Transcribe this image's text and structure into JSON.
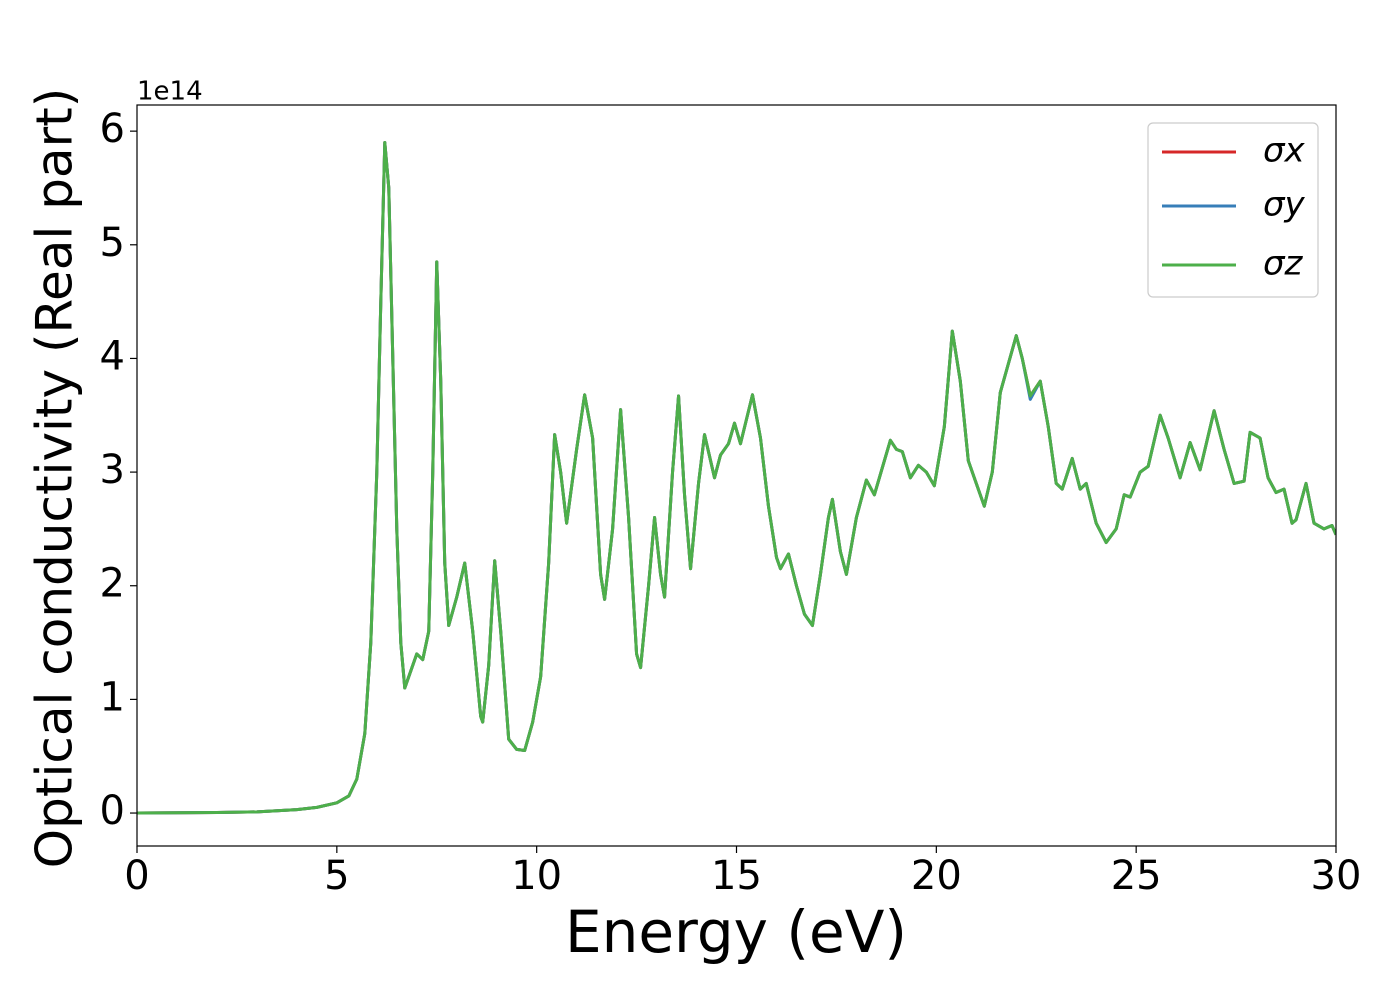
{
  "chart_data": {
    "type": "line",
    "xlabel": "Energy (eV)",
    "ylabel": "Optical conductivity (Real part)",
    "y_offset_label": "1e14",
    "xlim": [
      0,
      30
    ],
    "ylim": [
      -0.29,
      6.23
    ],
    "xticks": [
      0,
      5,
      10,
      15,
      20,
      25,
      30
    ],
    "yticks": [
      0,
      1,
      2,
      3,
      4,
      5,
      6
    ],
    "grid": false,
    "legend_position": "upper right",
    "x": [
      0,
      2,
      3,
      4,
      4.5,
      5,
      5.3,
      5.5,
      5.7,
      5.85,
      6.0,
      6.1,
      6.2,
      6.3,
      6.4,
      6.5,
      6.6,
      6.7,
      6.85,
      7.0,
      7.15,
      7.3,
      7.4,
      7.5,
      7.6,
      7.7,
      7.8,
      8.0,
      8.2,
      8.4,
      8.6,
      8.65,
      8.8,
      8.95,
      9.1,
      9.3,
      9.5,
      9.7,
      9.9,
      10.1,
      10.3,
      10.45,
      10.6,
      10.75,
      11.0,
      11.2,
      11.4,
      11.6,
      11.7,
      11.9,
      12.1,
      12.3,
      12.5,
      12.6,
      12.8,
      12.95,
      13.1,
      13.2,
      13.4,
      13.55,
      13.7,
      13.85,
      14.05,
      14.2,
      14.45,
      14.6,
      14.8,
      14.95,
      15.1,
      15.4,
      15.6,
      15.8,
      16.0,
      16.1,
      16.3,
      16.5,
      16.7,
      16.9,
      17.1,
      17.3,
      17.4,
      17.6,
      17.75,
      18.0,
      18.25,
      18.45,
      18.7,
      18.85,
      19.0,
      19.15,
      19.35,
      19.55,
      19.75,
      19.95,
      20.2,
      20.4,
      20.6,
      20.8,
      21.0,
      21.2,
      21.4,
      21.6,
      21.8,
      22.0,
      22.15,
      22.35,
      22.6,
      22.8,
      23.0,
      23.15,
      23.4,
      23.6,
      23.75,
      24.0,
      24.25,
      24.5,
      24.7,
      24.85,
      25.1,
      25.3,
      25.6,
      25.8,
      26.1,
      26.35,
      26.6,
      26.95,
      27.2,
      27.45,
      27.7,
      27.85,
      28.1,
      28.3,
      28.5,
      28.7,
      28.9,
      29.0,
      29.25,
      29.45,
      29.7,
      29.9,
      30.0
    ],
    "series": [
      {
        "name": "σx",
        "color": "#d62728",
        "values": [
          0,
          0.005,
          0.01,
          0.03,
          0.05,
          0.09,
          0.15,
          0.3,
          0.7,
          1.5,
          3.0,
          4.5,
          5.9,
          5.5,
          4.0,
          2.5,
          1.5,
          1.1,
          1.25,
          1.4,
          1.35,
          1.6,
          3.0,
          4.85,
          3.8,
          2.2,
          1.65,
          1.9,
          2.2,
          1.6,
          0.85,
          0.8,
          1.3,
          2.22,
          1.6,
          0.65,
          0.56,
          0.55,
          0.8,
          1.2,
          2.2,
          3.33,
          3.0,
          2.55,
          3.2,
          3.68,
          3.3,
          2.1,
          1.88,
          2.5,
          3.55,
          2.6,
          1.4,
          1.28,
          2.0,
          2.6,
          2.1,
          1.9,
          3.0,
          3.67,
          2.8,
          2.15,
          2.9,
          3.33,
          2.95,
          3.15,
          3.25,
          3.43,
          3.25,
          3.68,
          3.3,
          2.7,
          2.25,
          2.15,
          2.28,
          2.0,
          1.75,
          1.65,
          2.1,
          2.6,
          2.76,
          2.3,
          2.1,
          2.6,
          2.93,
          2.8,
          3.1,
          3.28,
          3.2,
          3.18,
          2.95,
          3.06,
          3.0,
          2.88,
          3.4,
          4.24,
          3.8,
          3.1,
          2.9,
          2.7,
          3.0,
          3.7,
          3.95,
          4.2,
          4.0,
          3.67,
          3.8,
          3.4,
          2.9,
          2.85,
          3.12,
          2.85,
          2.9,
          2.55,
          2.38,
          2.5,
          2.8,
          2.78,
          3.0,
          3.05,
          3.5,
          3.3,
          2.95,
          3.26,
          3.02,
          3.54,
          3.2,
          2.9,
          2.92,
          3.35,
          3.3,
          2.95,
          2.82,
          2.85,
          2.55,
          2.58,
          2.9,
          2.55,
          2.5,
          2.53,
          2.45
        ]
      },
      {
        "name": "σy",
        "color": "#377eb8",
        "values": [
          0,
          0.005,
          0.01,
          0.03,
          0.05,
          0.09,
          0.15,
          0.3,
          0.7,
          1.5,
          3.0,
          4.5,
          5.9,
          5.5,
          4.0,
          2.5,
          1.5,
          1.1,
          1.25,
          1.4,
          1.35,
          1.6,
          3.0,
          4.85,
          3.8,
          2.2,
          1.65,
          1.9,
          2.2,
          1.6,
          0.85,
          0.8,
          1.3,
          2.22,
          1.6,
          0.65,
          0.56,
          0.55,
          0.8,
          1.2,
          2.2,
          3.33,
          3.0,
          2.55,
          3.2,
          3.68,
          3.3,
          2.1,
          1.88,
          2.5,
          3.55,
          2.6,
          1.4,
          1.28,
          2.0,
          2.6,
          2.1,
          1.9,
          3.0,
          3.67,
          2.8,
          2.15,
          2.9,
          3.33,
          2.95,
          3.15,
          3.25,
          3.43,
          3.25,
          3.68,
          3.3,
          2.7,
          2.25,
          2.15,
          2.28,
          2.0,
          1.75,
          1.65,
          2.1,
          2.6,
          2.76,
          2.3,
          2.1,
          2.6,
          2.93,
          2.8,
          3.1,
          3.28,
          3.2,
          3.18,
          2.95,
          3.06,
          3.0,
          2.88,
          3.4,
          4.24,
          3.8,
          3.1,
          2.9,
          2.7,
          3.0,
          3.7,
          3.95,
          4.2,
          4.0,
          3.64,
          3.8,
          3.4,
          2.9,
          2.85,
          3.12,
          2.85,
          2.9,
          2.55,
          2.38,
          2.5,
          2.8,
          2.78,
          3.0,
          3.05,
          3.5,
          3.3,
          2.95,
          3.26,
          3.02,
          3.54,
          3.2,
          2.9,
          2.92,
          3.35,
          3.3,
          2.95,
          2.82,
          2.85,
          2.55,
          2.58,
          2.9,
          2.55,
          2.5,
          2.53,
          2.45
        ]
      },
      {
        "name": "σz",
        "color": "#4daf4a",
        "values": [
          0,
          0.005,
          0.01,
          0.03,
          0.05,
          0.09,
          0.15,
          0.3,
          0.7,
          1.5,
          3.0,
          4.5,
          5.9,
          5.5,
          4.0,
          2.5,
          1.5,
          1.1,
          1.25,
          1.4,
          1.35,
          1.6,
          3.0,
          4.85,
          3.8,
          2.2,
          1.65,
          1.9,
          2.2,
          1.6,
          0.85,
          0.8,
          1.3,
          2.22,
          1.6,
          0.65,
          0.56,
          0.55,
          0.8,
          1.2,
          2.2,
          3.33,
          3.0,
          2.55,
          3.2,
          3.68,
          3.3,
          2.1,
          1.88,
          2.5,
          3.55,
          2.6,
          1.4,
          1.28,
          2.0,
          2.6,
          2.1,
          1.9,
          3.0,
          3.67,
          2.8,
          2.15,
          2.9,
          3.33,
          2.95,
          3.15,
          3.25,
          3.43,
          3.25,
          3.68,
          3.3,
          2.7,
          2.25,
          2.15,
          2.28,
          2.0,
          1.75,
          1.65,
          2.1,
          2.6,
          2.76,
          2.3,
          2.1,
          2.6,
          2.93,
          2.8,
          3.1,
          3.28,
          3.2,
          3.18,
          2.95,
          3.06,
          3.0,
          2.88,
          3.4,
          4.24,
          3.8,
          3.1,
          2.9,
          2.7,
          3.0,
          3.7,
          3.95,
          4.2,
          4.0,
          3.67,
          3.8,
          3.4,
          2.9,
          2.85,
          3.12,
          2.85,
          2.9,
          2.55,
          2.38,
          2.5,
          2.8,
          2.78,
          3.0,
          3.05,
          3.5,
          3.3,
          2.95,
          3.26,
          3.02,
          3.54,
          3.2,
          2.9,
          2.92,
          3.35,
          3.3,
          2.95,
          2.82,
          2.85,
          2.55,
          2.58,
          2.9,
          2.55,
          2.5,
          2.53,
          2.45
        ]
      }
    ]
  }
}
